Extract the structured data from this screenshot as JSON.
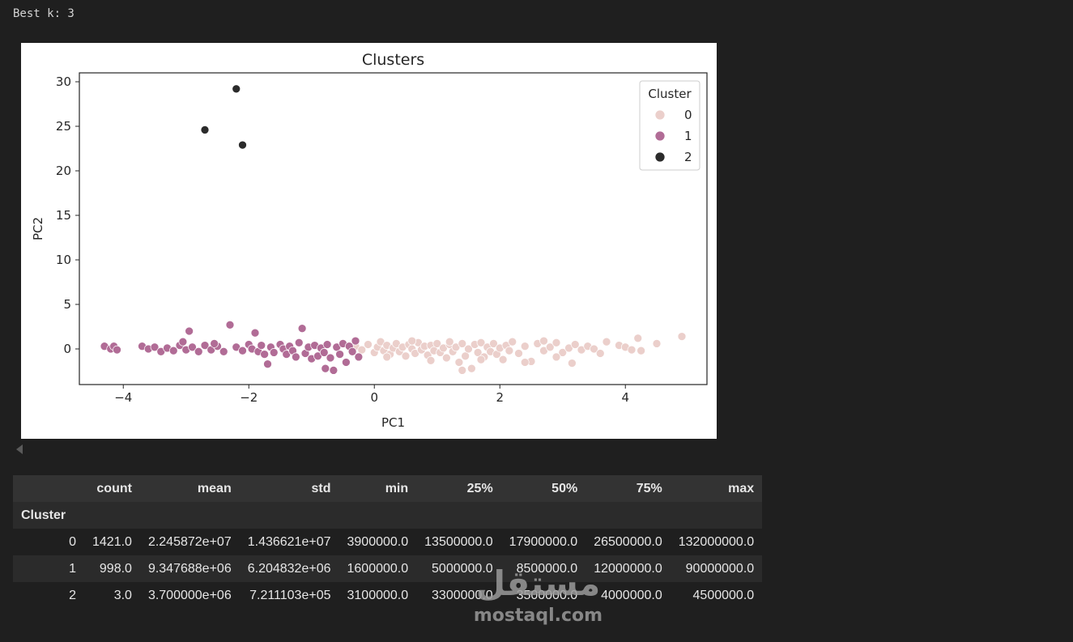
{
  "output": {
    "best_k": "Best k: 3"
  },
  "chart_data": {
    "type": "scatter",
    "title": "Clusters",
    "xlabel": "PC1",
    "ylabel": "PC2",
    "xlim": [
      -4.7,
      5.3
    ],
    "ylim": [
      -4.0,
      31.0
    ],
    "xticks": [
      -4,
      -2,
      0,
      2,
      4
    ],
    "yticks": [
      0,
      5,
      10,
      15,
      20,
      25,
      30
    ],
    "xtick_labels": [
      "−4",
      "−2",
      "0",
      "2",
      "4"
    ],
    "ytick_labels": [
      "0",
      "5",
      "10",
      "15",
      "20",
      "25",
      "30"
    ],
    "legend": {
      "title": "Cluster",
      "placement": "top-right"
    },
    "series": [
      {
        "name": "0",
        "color": "#ebcfcb",
        "points": [
          [
            -0.3,
            0.3
          ],
          [
            -0.2,
            -0.1
          ],
          [
            -0.1,
            0.5
          ],
          [
            0.0,
            -0.4
          ],
          [
            0.05,
            0.2
          ],
          [
            0.1,
            0.8
          ],
          [
            0.15,
            -0.2
          ],
          [
            0.2,
            0.4
          ],
          [
            0.25,
            -0.6
          ],
          [
            0.3,
            0.1
          ],
          [
            0.35,
            0.6
          ],
          [
            0.4,
            -0.3
          ],
          [
            0.45,
            0.2
          ],
          [
            0.5,
            -0.8
          ],
          [
            0.55,
            0.5
          ],
          [
            0.6,
            0.0
          ],
          [
            0.65,
            -0.5
          ],
          [
            0.7,
            0.7
          ],
          [
            0.75,
            -0.1
          ],
          [
            0.8,
            0.3
          ],
          [
            0.85,
            -0.7
          ],
          [
            0.9,
            0.4
          ],
          [
            0.95,
            -0.2
          ],
          [
            1.0,
            0.6
          ],
          [
            1.05,
            -0.4
          ],
          [
            1.1,
            0.1
          ],
          [
            1.15,
            -1.0
          ],
          [
            1.2,
            0.5
          ],
          [
            1.25,
            -0.3
          ],
          [
            1.3,
            0.2
          ],
          [
            1.35,
            -1.5
          ],
          [
            1.4,
            0.6
          ],
          [
            1.45,
            -0.8
          ],
          [
            1.5,
            0.0
          ],
          [
            1.55,
            -2.2
          ],
          [
            1.6,
            0.5
          ],
          [
            1.65,
            -0.4
          ],
          [
            1.7,
            0.7
          ],
          [
            1.75,
            -0.9
          ],
          [
            1.8,
            0.2
          ],
          [
            1.85,
            -0.3
          ],
          [
            1.9,
            0.6
          ],
          [
            1.95,
            -0.6
          ],
          [
            2.0,
            0.1
          ],
          [
            2.05,
            -1.2
          ],
          [
            2.1,
            0.4
          ],
          [
            2.15,
            -0.2
          ],
          [
            2.2,
            0.8
          ],
          [
            2.3,
            -0.5
          ],
          [
            2.4,
            0.3
          ],
          [
            2.5,
            -1.4
          ],
          [
            2.6,
            0.6
          ],
          [
            2.7,
            -0.2
          ],
          [
            2.8,
            0.2
          ],
          [
            2.9,
            0.7
          ],
          [
            3.0,
            -0.4
          ],
          [
            3.1,
            0.1
          ],
          [
            3.15,
            -1.6
          ],
          [
            3.2,
            0.5
          ],
          [
            3.3,
            -0.1
          ],
          [
            3.4,
            0.3
          ],
          [
            3.5,
            0.0
          ],
          [
            3.6,
            -0.5
          ],
          [
            3.7,
            0.8
          ],
          [
            3.9,
            0.4
          ],
          [
            4.0,
            0.2
          ],
          [
            4.1,
            -0.1
          ],
          [
            4.2,
            1.2
          ],
          [
            4.25,
            -0.2
          ],
          [
            4.5,
            0.6
          ],
          [
            4.9,
            1.4
          ],
          [
            1.4,
            -2.4
          ],
          [
            0.9,
            -1.3
          ],
          [
            2.4,
            -1.5
          ],
          [
            0.2,
            -0.9
          ],
          [
            1.7,
            -1.2
          ],
          [
            2.9,
            -0.9
          ],
          [
            0.6,
            0.9
          ],
          [
            1.2,
            0.8
          ],
          [
            2.7,
            0.9
          ]
        ]
      },
      {
        "name": "1",
        "color": "#b16c96",
        "points": [
          [
            -4.3,
            0.3
          ],
          [
            -4.2,
            0.0
          ],
          [
            -4.15,
            0.3
          ],
          [
            -4.1,
            -0.1
          ],
          [
            -3.7,
            0.3
          ],
          [
            -3.6,
            0.0
          ],
          [
            -3.5,
            0.2
          ],
          [
            -3.4,
            -0.3
          ],
          [
            -3.3,
            0.1
          ],
          [
            -3.2,
            -0.2
          ],
          [
            -3.1,
            0.4
          ],
          [
            -3.0,
            -0.1
          ],
          [
            -2.95,
            2.0
          ],
          [
            -2.9,
            0.2
          ],
          [
            -2.8,
            -0.3
          ],
          [
            -2.7,
            0.4
          ],
          [
            -2.6,
            -0.1
          ],
          [
            -2.5,
            0.3
          ],
          [
            -2.4,
            -0.3
          ],
          [
            -2.3,
            2.7
          ],
          [
            -2.2,
            0.2
          ],
          [
            -2.1,
            -0.2
          ],
          [
            -2.0,
            0.5
          ],
          [
            -1.95,
            0.0
          ],
          [
            -1.9,
            1.8
          ],
          [
            -1.85,
            -0.3
          ],
          [
            -1.8,
            0.4
          ],
          [
            -1.7,
            -1.7
          ],
          [
            -1.65,
            0.2
          ],
          [
            -1.6,
            -0.4
          ],
          [
            -1.5,
            0.5
          ],
          [
            -1.45,
            0.0
          ],
          [
            -1.4,
            -0.6
          ],
          [
            -1.35,
            0.3
          ],
          [
            -1.3,
            -0.2
          ],
          [
            -1.2,
            0.7
          ],
          [
            -1.15,
            2.3
          ],
          [
            -1.1,
            -0.5
          ],
          [
            -1.05,
            0.2
          ],
          [
            -1.0,
            -1.1
          ],
          [
            -0.95,
            0.4
          ],
          [
            -0.9,
            -0.8
          ],
          [
            -0.85,
            0.1
          ],
          [
            -0.8,
            -0.4
          ],
          [
            -0.75,
            0.5
          ],
          [
            -0.7,
            -1.0
          ],
          [
            -0.65,
            -2.4
          ],
          [
            -0.6,
            0.2
          ],
          [
            -0.55,
            -0.6
          ],
          [
            -0.5,
            0.6
          ],
          [
            -0.45,
            -1.5
          ],
          [
            -0.4,
            0.3
          ],
          [
            -0.35,
            -0.3
          ],
          [
            -0.3,
            0.9
          ],
          [
            -0.25,
            -0.9
          ],
          [
            -0.78,
            -2.2
          ],
          [
            -3.05,
            0.8
          ],
          [
            -1.75,
            -0.6
          ],
          [
            -2.55,
            0.6
          ],
          [
            -1.25,
            -0.9
          ]
        ]
      },
      {
        "name": "2",
        "color": "#2b2b2b",
        "points": [
          [
            -2.7,
            24.6
          ],
          [
            -2.2,
            29.2
          ],
          [
            -2.1,
            22.9
          ]
        ]
      }
    ]
  },
  "table": {
    "columns": [
      "count",
      "mean",
      "std",
      "min",
      "25%",
      "50%",
      "75%",
      "max"
    ],
    "index_name": "Cluster",
    "rows": [
      {
        "index": "0",
        "values": [
          "1421.0",
          "2.245872e+07",
          "1.436621e+07",
          "3900000.0",
          "13500000.0",
          "17900000.0",
          "26500000.0",
          "132000000.0"
        ]
      },
      {
        "index": "1",
        "values": [
          "998.0",
          "9.347688e+06",
          "6.204832e+06",
          "1600000.0",
          "5000000.0",
          "8500000.0",
          "12000000.0",
          "90000000.0"
        ]
      },
      {
        "index": "2",
        "values": [
          "3.0",
          "3.700000e+06",
          "7.211103e+05",
          "3100000.0",
          "3300000.0",
          "3500000.0",
          "4000000.0",
          "4500000.0"
        ]
      }
    ]
  },
  "watermark": {
    "glyph": "مستقل",
    "text": "mostaql.com"
  }
}
